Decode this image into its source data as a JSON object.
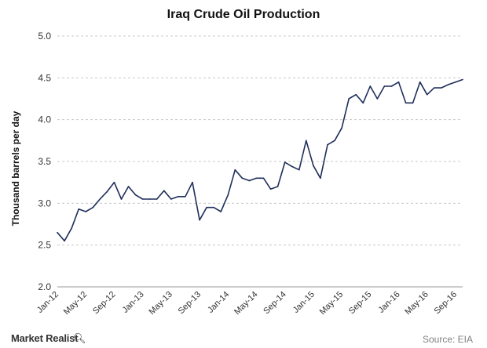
{
  "chart_data": {
    "type": "line",
    "title": "Iraq Crude Oil Production",
    "ylabel": "Thousand barrels per day",
    "xlabel": "",
    "ylim": [
      2.0,
      5.0
    ],
    "yticks": [
      "5.0",
      "4.5",
      "4.0",
      "3.5",
      "3.0",
      "2.5",
      "2.0"
    ],
    "ytick_values": [
      5.0,
      4.5,
      4.0,
      3.5,
      3.0,
      2.5,
      2.0
    ],
    "xtick_labels": [
      "Jan-12",
      "May-12",
      "Sep-12",
      "Jan-13",
      "May-13",
      "Sep-13",
      "Jan-14",
      "May-14",
      "Sep-14",
      "Jan-15",
      "May-15",
      "Sep-15",
      "Jan-16",
      "May-16",
      "Sep-16"
    ],
    "grid": "horizontal dashed",
    "line_color": "#1f2f5a",
    "start": "Jan-12",
    "values": [
      2.65,
      2.55,
      2.7,
      2.93,
      2.9,
      2.95,
      3.05,
      3.14,
      3.25,
      3.05,
      3.2,
      3.1,
      3.05,
      3.05,
      3.05,
      3.15,
      3.05,
      3.08,
      3.08,
      3.25,
      2.8,
      2.95,
      2.95,
      2.9,
      3.1,
      3.4,
      3.3,
      3.27,
      3.3,
      3.3,
      3.17,
      3.2,
      3.49,
      3.44,
      3.4,
      3.75,
      3.45,
      3.3,
      3.7,
      3.75,
      3.9,
      4.25,
      4.3,
      4.2,
      4.4,
      4.25,
      4.4,
      4.4,
      4.45,
      4.2,
      4.2,
      4.45,
      4.3,
      4.38,
      4.38,
      4.42,
      4.45,
      4.48
    ]
  },
  "branding": {
    "name": "Market Realist",
    "icon": "magnifier-icon"
  },
  "source": "Source: EIA"
}
